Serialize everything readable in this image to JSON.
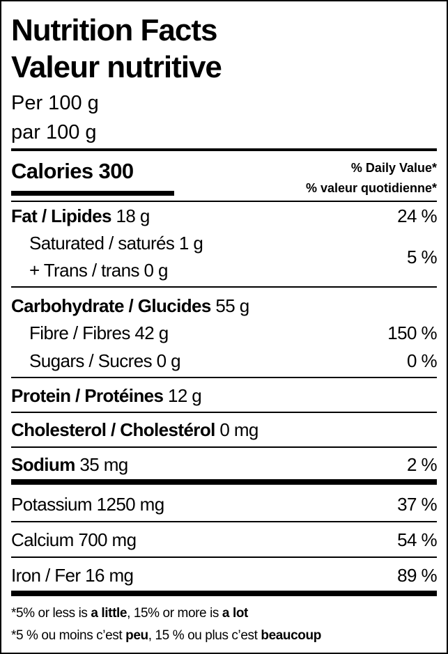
{
  "header": {
    "title_en": "Nutrition Facts",
    "title_fr": "Valeur nutritive",
    "serving_en": "Per 100 g",
    "serving_fr": "par 100 g"
  },
  "calories": "Calories 300",
  "daily_value": {
    "en": "% Daily Value*",
    "fr": "% valeur quotidienne*"
  },
  "rows": [
    {
      "name": "Fat / Lipides",
      "amount": "18 g",
      "dv": "24 %"
    },
    {
      "lines": [
        "Saturated / saturés 1 g",
        "+ Trans / trans 0 g"
      ],
      "dv": "5 %"
    },
    {
      "name": "Carbohydrate / Glucides",
      "amount": "55 g"
    },
    {
      "lines": [
        "Fibre / Fibres 42 g"
      ],
      "dv": "150 %"
    },
    {
      "lines": [
        "Sugars / Sucres 0 g"
      ],
      "dv": "0 %"
    },
    {
      "name": "Protein / Protéines",
      "amount": "12 g"
    },
    {
      "name": "Cholesterol / Cholestérol",
      "amount": "0 mg"
    },
    {
      "name": "Sodium",
      "amount": "35 mg",
      "dv": "2 %"
    },
    {
      "text": "Potassium 1250 mg",
      "dv": "37 %"
    },
    {
      "text": "Calcium 700 mg",
      "dv": "54 %"
    },
    {
      "text": "Iron / Fer 16 mg",
      "dv": "89 %"
    }
  ],
  "footnote": [
    [
      "*5% or less is ",
      "a little",
      ", 15% or more is ",
      "a lot"
    ],
    [
      "*5 % ou moins c’est ",
      "peu",
      ", 15 % ou plus c’est ",
      "beaucoup"
    ]
  ]
}
